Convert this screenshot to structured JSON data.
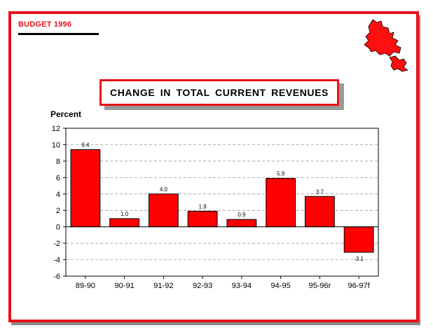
{
  "header": {
    "budget_label": "BUDGET 1996"
  },
  "title": "CHANGE IN TOTAL CURRENT REVENUES",
  "chart_data": {
    "type": "bar",
    "title": "CHANGE IN TOTAL CURRENT REVENUES",
    "xlabel": "",
    "ylabel": "Percent",
    "categories": [
      "89-90",
      "90-91",
      "91-92",
      "92-93",
      "93-94",
      "94-95",
      "95-96r",
      "96-97f"
    ],
    "values": [
      9.4,
      1.0,
      4.0,
      1.9,
      0.9,
      5.9,
      3.7,
      -3.1
    ],
    "data_labels": [
      "9.4",
      "1.0",
      "4.0",
      "1.9",
      "0.9",
      "5.9",
      "3.7",
      "-3.1"
    ],
    "ylim": [
      -6,
      12
    ],
    "yticks": [
      -6,
      -4,
      -2,
      0,
      2,
      4,
      6,
      8,
      10,
      12
    ],
    "grid": "horizontal dashed",
    "bar_color": "#ff0000"
  },
  "colors": {
    "accent": "#e8121b",
    "bar": "#ff0000"
  },
  "logo": {
    "icon": "newfoundland-map-icon"
  }
}
